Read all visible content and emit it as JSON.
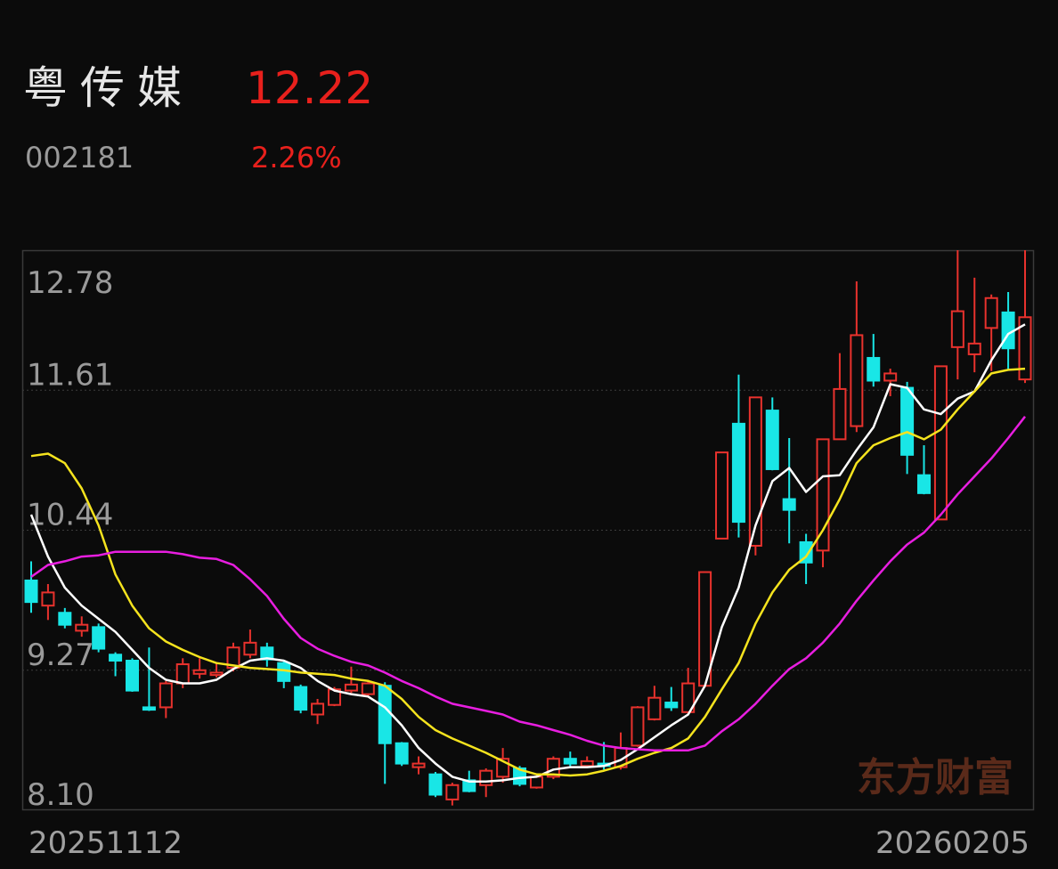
{
  "header": {
    "name": "粤传媒",
    "price": 12.22,
    "code": "002181",
    "change": {
      "value": 2.26,
      "label": "2.26%"
    }
  },
  "chart_data": {
    "type": "candlestick",
    "categories": [
      "20251112",
      null,
      null,
      null,
      null,
      null,
      null,
      null,
      null,
      null,
      null,
      null,
      null,
      null,
      null,
      null,
      null,
      null,
      null,
      null,
      null,
      null,
      null,
      null,
      null,
      null,
      null,
      null,
      null,
      null,
      null,
      null,
      null,
      null,
      null,
      null,
      null,
      null,
      null,
      null,
      null,
      null,
      null,
      null,
      null,
      null,
      null,
      null,
      null,
      null,
      null,
      null,
      null,
      null,
      null,
      null,
      null,
      null,
      null,
      "20260205"
    ],
    "open": [
      10.02,
      9.81,
      9.75,
      9.6,
      9.63,
      9.4,
      9.35,
      8.96,
      8.96,
      9.16,
      9.24,
      9.23,
      9.29,
      9.4,
      9.46,
      9.33,
      9.13,
      8.9,
      8.98,
      9.1,
      9.07,
      9.14,
      8.66,
      8.46,
      8.4,
      8.19,
      8.35,
      8.31,
      8.38,
      8.45,
      8.29,
      8.38,
      8.53,
      8.47,
      8.49,
      8.46,
      8.64,
      8.86,
      9.0,
      8.92,
      9.14,
      10.37,
      11.33,
      10.31,
      11.44,
      10.7,
      10.34,
      10.27,
      11.2,
      11.31,
      11.88,
      11.69,
      11.63,
      10.9,
      10.53,
      11.97,
      11.91,
      12.13,
      12.26,
      11.7
    ],
    "high": [
      10.18,
      9.99,
      9.79,
      9.72,
      9.66,
      9.42,
      9.37,
      9.46,
      9.18,
      9.37,
      9.37,
      9.33,
      9.5,
      9.61,
      9.5,
      9.35,
      9.15,
      9.03,
      9.13,
      9.3,
      9.19,
      9.17,
      8.67,
      8.55,
      8.42,
      8.33,
      8.43,
      8.45,
      8.62,
      8.47,
      8.39,
      8.55,
      8.59,
      8.55,
      8.67,
      8.75,
      8.97,
      9.14,
      9.13,
      9.29,
      10.09,
      11.09,
      11.74,
      11.55,
      11.55,
      11.21,
      10.41,
      11.2,
      11.92,
      12.52,
      12.08,
      11.79,
      11.68,
      11.15,
      11.81,
      12.78,
      12.55,
      12.41,
      12.43,
      12.78
    ],
    "low": [
      9.75,
      9.69,
      9.62,
      9.55,
      9.42,
      9.22,
      9.09,
      8.93,
      8.87,
      9.12,
      9.2,
      9.21,
      9.26,
      9.37,
      9.3,
      9.12,
      8.91,
      8.82,
      8.97,
      9.08,
      9.05,
      8.32,
      8.47,
      8.4,
      8.21,
      8.14,
      8.25,
      8.21,
      8.33,
      8.3,
      8.28,
      8.36,
      8.46,
      8.46,
      8.44,
      8.44,
      8.63,
      8.85,
      8.93,
      8.9,
      9.13,
      10.37,
      10.38,
      10.23,
      10.94,
      10.33,
      9.99,
      10.13,
      11.2,
      11.26,
      11.64,
      11.56,
      10.91,
      10.74,
      10.53,
      11.7,
      11.76,
      11.77,
      11.78,
      11.67
    ],
    "close": [
      9.84,
      9.92,
      9.65,
      9.65,
      9.45,
      9.35,
      9.1,
      8.94,
      9.16,
      9.32,
      9.27,
      9.25,
      9.46,
      9.5,
      9.36,
      9.18,
      8.94,
      8.99,
      9.11,
      9.15,
      9.16,
      8.66,
      8.49,
      8.49,
      8.23,
      8.31,
      8.26,
      8.43,
      8.53,
      8.32,
      8.38,
      8.53,
      8.49,
      8.51,
      8.47,
      8.62,
      8.96,
      9.04,
      8.96,
      9.16,
      10.09,
      11.09,
      10.51,
      11.55,
      10.95,
      10.61,
      10.17,
      11.2,
      11.62,
      12.07,
      11.69,
      11.75,
      11.07,
      10.75,
      11.81,
      12.27,
      12.0,
      12.38,
      11.96,
      12.22
    ],
    "up_color": "#e8322d",
    "down_color": "#19e6e6",
    "lines": [
      {
        "color": "#ffffff",
        "values": [
          10.57,
          10.22,
          9.96,
          9.81,
          9.7,
          9.59,
          9.44,
          9.29,
          9.19,
          9.16,
          9.16,
          9.19,
          9.28,
          9.35,
          9.37,
          9.35,
          9.29,
          9.18,
          9.1,
          9.07,
          9.05,
          8.96,
          8.81,
          8.62,
          8.49,
          8.38,
          8.34,
          8.34,
          8.35,
          8.37,
          8.38,
          8.44,
          8.46,
          8.46,
          8.47,
          8.52,
          8.61,
          8.71,
          8.81,
          8.9,
          9.14,
          9.63,
          9.96,
          10.48,
          10.85,
          10.96,
          10.76,
          10.89,
          10.9,
          11.11,
          11.3,
          11.66,
          11.63,
          11.45,
          11.41,
          11.54,
          11.6,
          11.86,
          12.08,
          12.16
        ]
      },
      {
        "color": "#f5e31e",
        "values": [
          11.06,
          11.08,
          11.0,
          10.79,
          10.48,
          10.07,
          9.81,
          9.62,
          9.51,
          9.44,
          9.38,
          9.33,
          9.31,
          9.29,
          9.28,
          9.27,
          9.25,
          9.24,
          9.23,
          9.2,
          9.18,
          9.14,
          9.03,
          8.88,
          8.77,
          8.7,
          8.64,
          8.58,
          8.51,
          8.44,
          8.4,
          8.4,
          8.39,
          8.4,
          8.43,
          8.47,
          8.53,
          8.58,
          8.62,
          8.7,
          8.88,
          9.11,
          9.33,
          9.66,
          9.92,
          10.11,
          10.22,
          10.44,
          10.7,
          11.0,
          11.15,
          11.21,
          11.26,
          11.2,
          11.28,
          11.45,
          11.6,
          11.75,
          11.78,
          11.79
        ]
      },
      {
        "color": "#e81ee0",
        "values": [
          10.05,
          10.15,
          10.18,
          10.22,
          10.23,
          10.26,
          10.26,
          10.26,
          10.26,
          10.24,
          10.21,
          10.2,
          10.15,
          10.03,
          9.89,
          9.7,
          9.54,
          9.45,
          9.39,
          9.34,
          9.31,
          9.25,
          9.18,
          9.12,
          9.05,
          8.99,
          8.96,
          8.93,
          8.9,
          8.84,
          8.81,
          8.77,
          8.73,
          8.68,
          8.64,
          8.62,
          8.61,
          8.6,
          8.6,
          8.6,
          8.64,
          8.76,
          8.86,
          8.99,
          9.14,
          9.28,
          9.37,
          9.5,
          9.66,
          9.85,
          10.02,
          10.18,
          10.32,
          10.42,
          10.57,
          10.74,
          10.89,
          11.04,
          11.21,
          11.39
        ]
      }
    ],
    "ylim": [
      8.1,
      12.78
    ],
    "yticks": [
      12.78,
      11.61,
      10.44,
      9.27,
      {
        "value": 8.1,
        "label": "8.10"
      }
    ],
    "grid": true,
    "watermark": "东方财富"
  }
}
